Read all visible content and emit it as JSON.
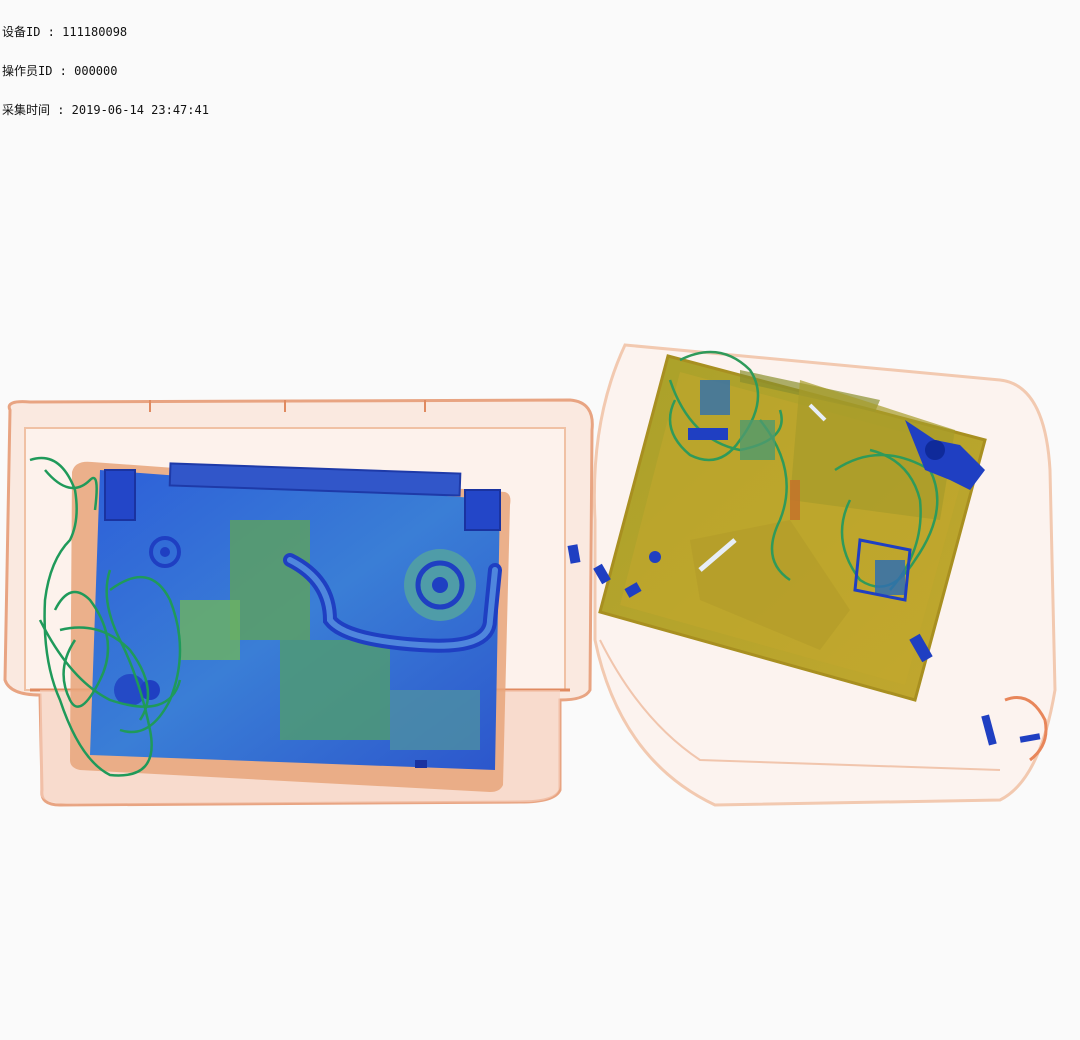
{
  "overlay": {
    "device_id": "设备ID : 111180098",
    "operator_id": "操作员ID : 000000",
    "capture_time": "采集时间 : 2019-06-14 23:47:41"
  },
  "palette": {
    "background": "#fafafa",
    "organic_orange": "#e8865a",
    "mixed_olive": "#b7a52a",
    "mixed_green": "#6bbf5a",
    "metal_blue": "#2f5fd6",
    "deep_blue": "#1f3fc2"
  }
}
